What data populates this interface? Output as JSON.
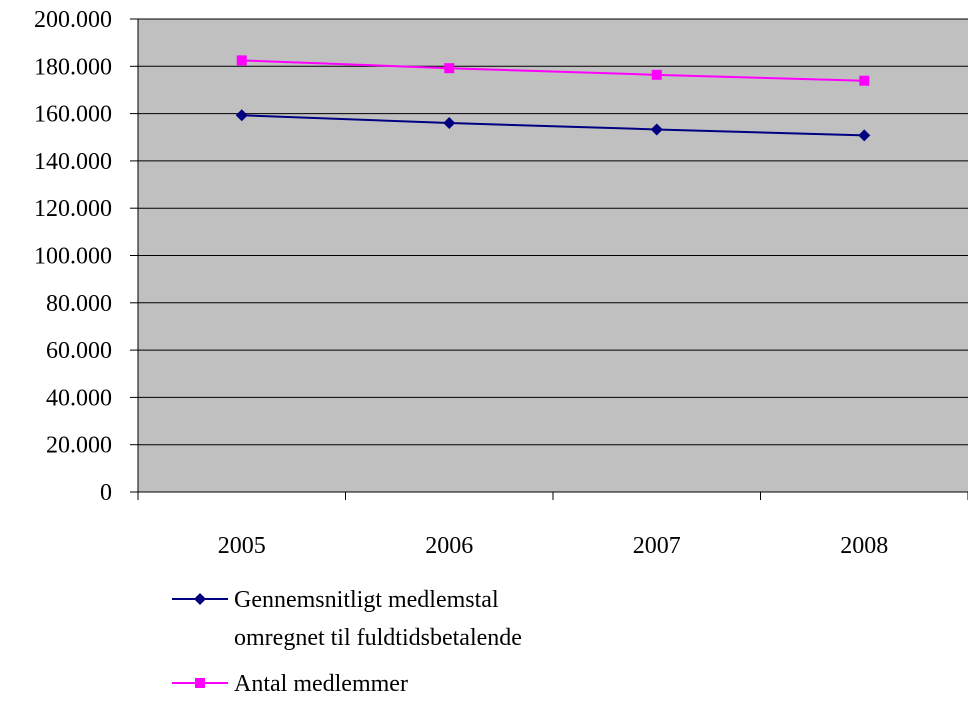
{
  "chart_data": {
    "type": "line",
    "categories": [
      "2005",
      "2006",
      "2007",
      "2008"
    ],
    "ylim": [
      0,
      200000
    ],
    "yticks": [
      0,
      20000,
      40000,
      60000,
      80000,
      100000,
      120000,
      140000,
      160000,
      180000,
      200000
    ],
    "ytick_labels": [
      "0",
      "20.000",
      "40.000",
      "60.000",
      "80.000",
      "100.000",
      "120.000",
      "140.000",
      "160.000",
      "180.000",
      "200.000"
    ],
    "grid": true,
    "plot_background": "#c0c0c0",
    "legend_position": "bottom",
    "series": [
      {
        "name_lines": [
          "Gennemsnitligt medlemstal",
          "omregnet til fuldtidsbetalende"
        ],
        "values": [
          159300,
          156000,
          153300,
          150800
        ],
        "color": "#000080",
        "marker": "diamond"
      },
      {
        "name_lines": [
          "Antal medlemmer"
        ],
        "values": [
          182500,
          179200,
          176400,
          173900
        ],
        "color": "#ff00ff",
        "marker": "square"
      }
    ]
  }
}
